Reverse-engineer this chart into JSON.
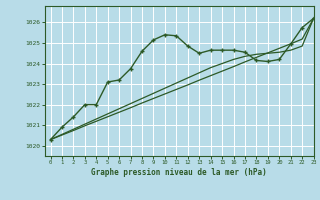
{
  "title": "Graphe pression niveau de la mer (hPa)",
  "bg_color": "#b8dce8",
  "plot_bg_color": "#b8dce8",
  "grid_color": "#ffffff",
  "line_color": "#2d5a27",
  "xlim": [
    -0.5,
    23
  ],
  "ylim": [
    1019.5,
    1026.8
  ],
  "yticks": [
    1020,
    1021,
    1022,
    1023,
    1024,
    1025,
    1026
  ],
  "xticks": [
    0,
    1,
    2,
    3,
    4,
    5,
    6,
    7,
    8,
    9,
    10,
    11,
    12,
    13,
    14,
    15,
    16,
    17,
    18,
    19,
    20,
    21,
    22,
    23
  ],
  "main_line": [
    1020.3,
    1020.9,
    1021.4,
    1022.0,
    1022.0,
    1023.1,
    1023.2,
    1023.75,
    1024.6,
    1025.15,
    1025.4,
    1025.35,
    1024.85,
    1024.5,
    1024.65,
    1024.65,
    1024.65,
    1024.55,
    1024.15,
    1024.1,
    1024.2,
    1024.95,
    1025.75,
    1026.2
  ],
  "line_straight1": [
    1020.3,
    1020.52,
    1020.74,
    1020.97,
    1021.19,
    1021.41,
    1021.63,
    1021.85,
    1022.08,
    1022.3,
    1022.52,
    1022.74,
    1022.96,
    1023.19,
    1023.41,
    1023.63,
    1023.85,
    1024.08,
    1024.3,
    1024.52,
    1024.74,
    1024.96,
    1025.19,
    1026.2
  ],
  "line_straight2": [
    1020.3,
    1020.55,
    1020.8,
    1021.05,
    1021.3,
    1021.55,
    1021.8,
    1022.05,
    1022.3,
    1022.55,
    1022.8,
    1023.05,
    1023.3,
    1023.55,
    1023.8,
    1024.0,
    1024.2,
    1024.35,
    1024.45,
    1024.5,
    1024.55,
    1024.65,
    1024.85,
    1026.2
  ]
}
